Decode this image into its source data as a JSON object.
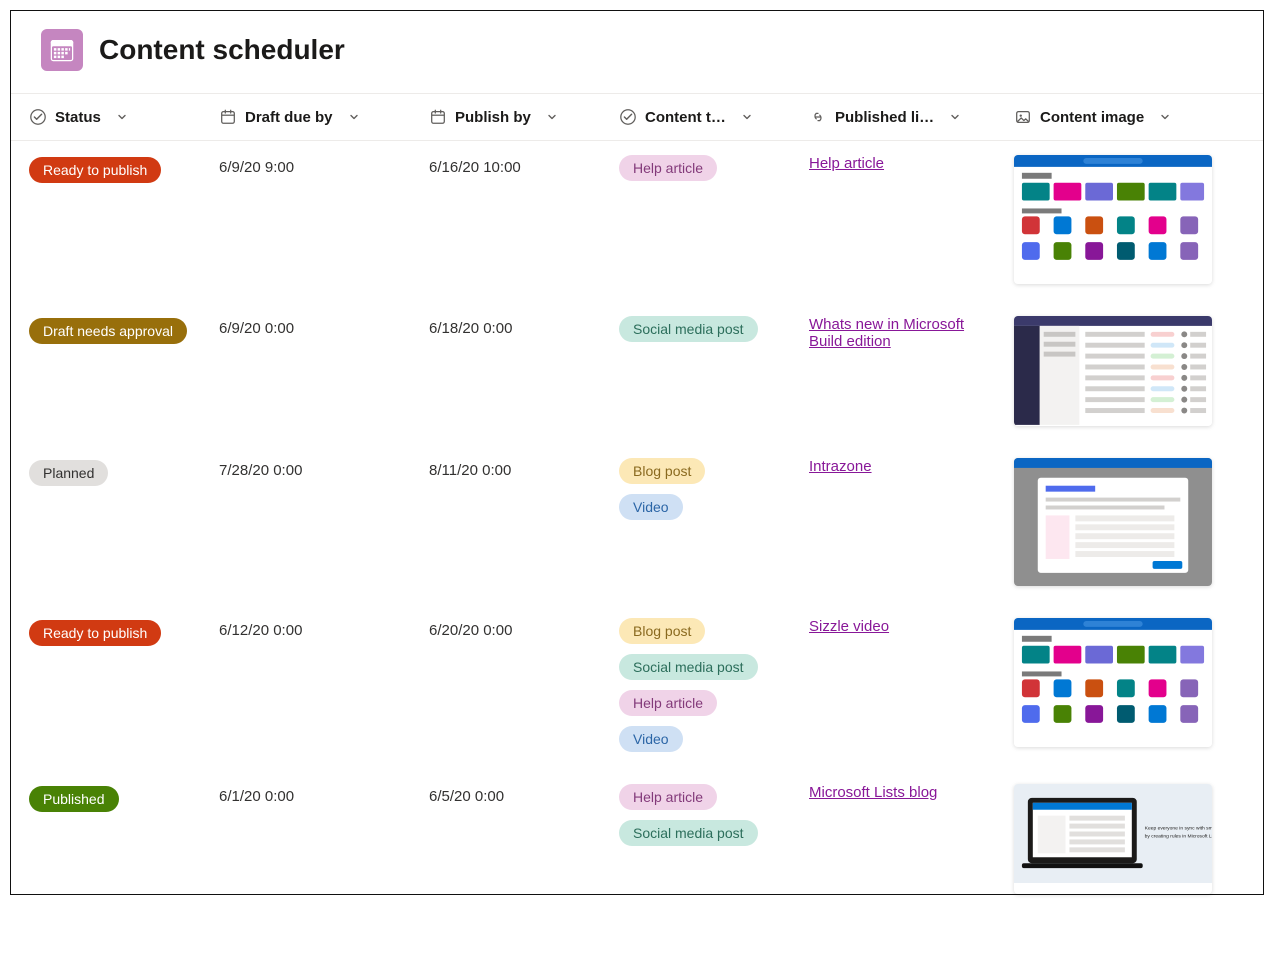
{
  "app": {
    "title": "Content scheduler",
    "icon_color": "#c586c0"
  },
  "columns": [
    {
      "key": "status",
      "label": "Status",
      "icon": "check-circle"
    },
    {
      "key": "draft",
      "label": "Draft due by",
      "icon": "calendar"
    },
    {
      "key": "publish",
      "label": "Publish by",
      "icon": "calendar"
    },
    {
      "key": "type",
      "label": "Content t…",
      "icon": "check-circle"
    },
    {
      "key": "link",
      "label": "Published li…",
      "icon": "link"
    },
    {
      "key": "image",
      "label": "Content image",
      "icon": "image"
    }
  ],
  "status_styles": {
    "Ready to publish": {
      "bg": "#d13a12",
      "fg": "#ffffff"
    },
    "Draft needs approval": {
      "bg": "#986f0b",
      "fg": "#ffffff"
    },
    "Planned": {
      "bg": "#e1dfdd",
      "fg": "#323130"
    },
    "Published": {
      "bg": "#498205",
      "fg": "#ffffff"
    }
  },
  "type_styles": {
    "Help article": {
      "bg": "#f0d3e8",
      "fg": "#833a7a"
    },
    "Social media post": {
      "bg": "#c8e8df",
      "fg": "#2c6e5b"
    },
    "Blog post": {
      "bg": "#fce8b6",
      "fg": "#8a6a1f"
    },
    "Video": {
      "bg": "#cfe0f4",
      "fg": "#2b65a6"
    }
  },
  "link_color": "#881798",
  "thumbnails": {
    "lists_home": "lists-home",
    "teams": "teams-app",
    "modal": "modal-dialog",
    "laptop": "laptop-promo"
  },
  "rows": [
    {
      "status": "Ready to publish",
      "draft": "6/9/20 9:00",
      "publish": "6/16/20 10:00",
      "types": [
        "Help article"
      ],
      "link": "Help article",
      "thumb": "lists_home"
    },
    {
      "status": "Draft needs approval",
      "draft": "6/9/20 0:00",
      "publish": "6/18/20 0:00",
      "types": [
        "Social media post"
      ],
      "link": "Whats new in Microsoft Build edition",
      "thumb": "teams"
    },
    {
      "status": "Planned",
      "draft": "7/28/20 0:00",
      "publish": "8/11/20 0:00",
      "types": [
        "Blog post",
        "Video"
      ],
      "link": "Intrazone",
      "thumb": "modal"
    },
    {
      "status": "Ready to publish",
      "draft": "6/12/20 0:00",
      "publish": "6/20/20 0:00",
      "types": [
        "Blog post",
        "Social media post",
        "Help article",
        "Video"
      ],
      "link": "Sizzle video",
      "thumb": "lists_home"
    },
    {
      "status": "Published",
      "draft": "6/1/20 0:00",
      "publish": "6/5/20 0:00",
      "types": [
        "Help article",
        "Social media post"
      ],
      "link": "Microsoft Lists blog",
      "thumb": "laptop"
    }
  ]
}
